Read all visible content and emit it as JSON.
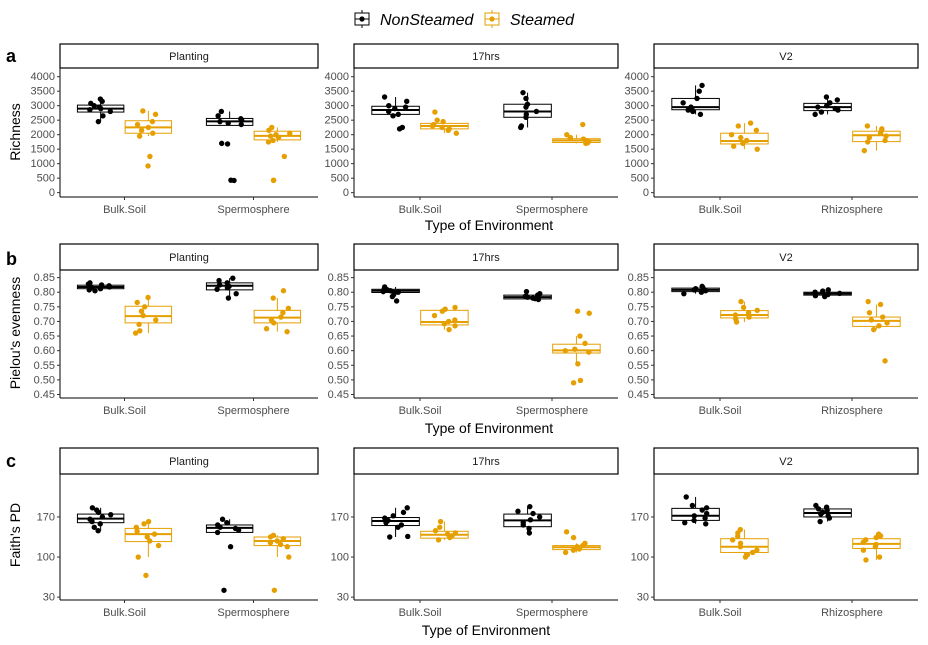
{
  "colors": {
    "NonSteamed": "#000000",
    "Steamed": "#E69F00"
  },
  "legend": {
    "items": [
      "NonSteamed",
      "Steamed"
    ],
    "placement": "top-center"
  },
  "chart_data": [
    {
      "type": "boxplot",
      "tag": "a",
      "ylabel": "Richness",
      "xlabel": "Type of Environment",
      "ylim": [
        -150,
        4300
      ],
      "yticks": [
        0,
        500,
        1000,
        1500,
        2000,
        2500,
        3000,
        3500,
        4000
      ],
      "panels": [
        {
          "title": "Planting",
          "categories": [
            "Bulk.Soil",
            "Spermosphere"
          ],
          "boxes": [
            {
              "cat": "Bulk.Soil",
              "series": "NonSteamed",
              "q1": 2780,
              "median": 2900,
              "q3": 3020,
              "points": [
                3230,
                3150,
                3080,
                3000,
                2950,
                2900,
                2860,
                2800,
                2650,
                2450
              ]
            },
            {
              "cat": "Bulk.Soil",
              "series": "Steamed",
              "q1": 2050,
              "median": 2250,
              "q3": 2480,
              "points": [
                2820,
                2700,
                2450,
                2350,
                2250,
                2150,
                2050,
                1950,
                1250,
                920
              ]
            },
            {
              "cat": "Spermosphere",
              "series": "NonSteamed",
              "q1": 2320,
              "median": 2460,
              "q3": 2560,
              "points": [
                2800,
                2650,
                2550,
                2500,
                2450,
                2400,
                2350,
                1700,
                1680,
                430,
                420
              ]
            },
            {
              "cat": "Spermosphere",
              "series": "Steamed",
              "q1": 1820,
              "median": 1960,
              "q3": 2120,
              "points": [
                2250,
                2150,
                2050,
                2000,
                1950,
                1900,
                1800,
                1750,
                1250,
                430,
                420
              ]
            }
          ]
        },
        {
          "title": "17hrs",
          "categories": [
            "Bulk.Soil",
            "Spermosphere"
          ],
          "boxes": [
            {
              "cat": "Bulk.Soil",
              "series": "NonSteamed",
              "q1": 2700,
              "median": 2850,
              "q3": 2980,
              "points": [
                3300,
                3150,
                3000,
                2950,
                2900,
                2800,
                2700,
                2650,
                2250,
                2200
              ]
            },
            {
              "cat": "Bulk.Soil",
              "series": "Steamed",
              "q1": 2200,
              "median": 2300,
              "q3": 2390,
              "points": [
                2780,
                2500,
                2450,
                2350,
                2300,
                2250,
                2200,
                2150,
                2050
              ]
            },
            {
              "cat": "Spermosphere",
              "series": "NonSteamed",
              "q1": 2600,
              "median": 2800,
              "q3": 3050,
              "points": [
                3450,
                3250,
                3050,
                2950,
                2800,
                2700,
                2600,
                2300,
                2250
              ]
            },
            {
              "cat": "Spermosphere",
              "series": "Steamed",
              "q1": 1730,
              "median": 1800,
              "q3": 1860,
              "points": [
                2350,
                2000,
                1900,
                1850,
                1800,
                1760,
                1720,
                1700
              ]
            }
          ]
        },
        {
          "title": "V2",
          "categories": [
            "Bulk.Soil",
            "Rhizosphere"
          ],
          "boxes": [
            {
              "cat": "Bulk.Soil",
              "series": "NonSteamed",
              "q1": 2860,
              "median": 2950,
              "q3": 3250,
              "points": [
                3700,
                3500,
                3250,
                3100,
                2950,
                2900,
                2850,
                2800,
                2700
              ]
            },
            {
              "cat": "Bulk.Soil",
              "series": "Steamed",
              "q1": 1680,
              "median": 1780,
              "q3": 2050,
              "points": [
                2400,
                2300,
                2150,
                2000,
                1900,
                1800,
                1700,
                1600,
                1500
              ]
            },
            {
              "cat": "Rhizosphere",
              "series": "NonSteamed",
              "q1": 2830,
              "median": 2950,
              "q3": 3080,
              "points": [
                3300,
                3200,
                3100,
                3000,
                2950,
                2900,
                2850,
                2780,
                2700
              ]
            },
            {
              "cat": "Rhizosphere",
              "series": "Steamed",
              "q1": 1760,
              "median": 1980,
              "q3": 2120,
              "points": [
                2300,
                2200,
                2150,
                2050,
                1950,
                1900,
                1800,
                1750,
                1450
              ]
            }
          ]
        }
      ]
    },
    {
      "type": "boxplot",
      "tag": "b",
      "ylabel": "Pielou's evenness",
      "xlabel": "Type of Environment",
      "ylim": [
        0.438,
        0.876
      ],
      "yticks": [
        0.45,
        0.5,
        0.55,
        0.6,
        0.65,
        0.7,
        0.75,
        0.8,
        0.85
      ],
      "tick_format": 2,
      "panels": [
        {
          "title": "Planting",
          "categories": [
            "Bulk.Soil",
            "Spermosphere"
          ],
          "boxes": [
            {
              "cat": "Bulk.Soil",
              "series": "NonSteamed",
              "q1": 0.812,
              "median": 0.818,
              "q3": 0.824,
              "points": [
                0.832,
                0.828,
                0.825,
                0.822,
                0.818,
                0.815,
                0.812,
                0.808,
                0.805
              ]
            },
            {
              "cat": "Bulk.Soil",
              "series": "Steamed",
              "q1": 0.695,
              "median": 0.718,
              "q3": 0.752,
              "points": [
                0.782,
                0.765,
                0.75,
                0.735,
                0.72,
                0.705,
                0.69,
                0.668,
                0.66
              ]
            },
            {
              "cat": "Spermosphere",
              "series": "NonSteamed",
              "q1": 0.808,
              "median": 0.822,
              "q3": 0.832,
              "points": [
                0.848,
                0.84,
                0.832,
                0.825,
                0.82,
                0.815,
                0.81,
                0.795,
                0.78
              ]
            },
            {
              "cat": "Spermosphere",
              "series": "Steamed",
              "q1": 0.695,
              "median": 0.713,
              "q3": 0.738,
              "points": [
                0.805,
                0.78,
                0.745,
                0.73,
                0.715,
                0.705,
                0.695,
                0.675,
                0.665
              ]
            }
          ]
        },
        {
          "title": "17hrs",
          "categories": [
            "Bulk.Soil",
            "Spermosphere"
          ],
          "boxes": [
            {
              "cat": "Bulk.Soil",
              "series": "NonSteamed",
              "q1": 0.799,
              "median": 0.805,
              "q3": 0.81,
              "points": [
                0.818,
                0.812,
                0.808,
                0.805,
                0.802,
                0.8,
                0.795,
                0.785,
                0.77
              ]
            },
            {
              "cat": "Bulk.Soil",
              "series": "Steamed",
              "q1": 0.688,
              "median": 0.698,
              "q3": 0.738,
              "points": [
                0.748,
                0.742,
                0.735,
                0.72,
                0.705,
                0.7,
                0.692,
                0.685,
                0.672
              ]
            },
            {
              "cat": "Spermosphere",
              "series": "NonSteamed",
              "q1": 0.777,
              "median": 0.783,
              "q3": 0.79,
              "points": [
                0.802,
                0.795,
                0.79,
                0.786,
                0.783,
                0.78,
                0.778,
                0.775
              ]
            },
            {
              "cat": "Spermosphere",
              "series": "Steamed",
              "q1": 0.592,
              "median": 0.601,
              "q3": 0.622,
              "points": [
                0.735,
                0.728,
                0.65,
                0.625,
                0.605,
                0.6,
                0.595,
                0.555,
                0.498,
                0.49
              ]
            }
          ]
        },
        {
          "title": "V2",
          "categories": [
            "Bulk.Soil",
            "Rhizosphere"
          ],
          "boxes": [
            {
              "cat": "Bulk.Soil",
              "series": "NonSteamed",
              "q1": 0.802,
              "median": 0.808,
              "q3": 0.814,
              "points": [
                0.82,
                0.815,
                0.812,
                0.808,
                0.805,
                0.8,
                0.795
              ]
            },
            {
              "cat": "Bulk.Soil",
              "series": "Steamed",
              "q1": 0.712,
              "median": 0.722,
              "q3": 0.737,
              "points": [
                0.768,
                0.748,
                0.738,
                0.73,
                0.722,
                0.715,
                0.708,
                0.698
              ]
            },
            {
              "cat": "Rhizosphere",
              "series": "NonSteamed",
              "q1": 0.79,
              "median": 0.795,
              "q3": 0.8,
              "points": [
                0.808,
                0.804,
                0.8,
                0.796,
                0.792,
                0.788,
                0.785
              ]
            },
            {
              "cat": "Rhizosphere",
              "series": "Steamed",
              "q1": 0.683,
              "median": 0.702,
              "q3": 0.715,
              "points": [
                0.768,
                0.758,
                0.73,
                0.715,
                0.705,
                0.695,
                0.685,
                0.672,
                0.565
              ]
            }
          ]
        }
      ]
    },
    {
      "type": "boxplot",
      "tag": "c",
      "ylabel": "Faith's PD",
      "xlabel": "Type of Environment",
      "ylim": [
        25,
        245
      ],
      "yticks": [
        30,
        100,
        170
      ],
      "panels": [
        {
          "title": "Planting",
          "categories": [
            "Bulk.Soil",
            "Spermosphere"
          ],
          "boxes": [
            {
              "cat": "Bulk.Soil",
              "series": "NonSteamed",
              "q1": 160,
              "median": 167,
              "q3": 175,
              "points": [
                186,
                182,
                178,
                174,
                170,
                166,
                162,
                158,
                152,
                146
              ]
            },
            {
              "cat": "Bulk.Soil",
              "series": "Steamed",
              "q1": 127,
              "median": 140,
              "q3": 150,
              "points": [
                162,
                158,
                152,
                145,
                140,
                135,
                128,
                120,
                100,
                68
              ]
            },
            {
              "cat": "Spermosphere",
              "series": "NonSteamed",
              "q1": 143,
              "median": 151,
              "q3": 156,
              "points": [
                166,
                160,
                156,
                152,
                150,
                147,
                143,
                118,
                42
              ]
            },
            {
              "cat": "Spermosphere",
              "series": "Steamed",
              "q1": 120,
              "median": 128,
              "q3": 135,
              "points": [
                138,
                135,
                132,
                128,
                125,
                122,
                118,
                100,
                42
              ]
            }
          ]
        },
        {
          "title": "17hrs",
          "categories": [
            "Bulk.Soil",
            "Spermosphere"
          ],
          "boxes": [
            {
              "cat": "Bulk.Soil",
              "series": "NonSteamed",
              "q1": 155,
              "median": 163,
              "q3": 169,
              "points": [
                186,
                178,
                172,
                168,
                164,
                160,
                156,
                152,
                136,
                135
              ]
            },
            {
              "cat": "Bulk.Soil",
              "series": "Steamed",
              "q1": 133,
              "median": 139,
              "q3": 145,
              "points": [
                162,
                152,
                146,
                142,
                140,
                137,
                134,
                130
              ]
            },
            {
              "cat": "Spermosphere",
              "series": "NonSteamed",
              "q1": 153,
              "median": 164,
              "q3": 175,
              "points": [
                188,
                180,
                176,
                170,
                165,
                160,
                156,
                150,
                142
              ]
            },
            {
              "cat": "Spermosphere",
              "series": "Steamed",
              "q1": 113,
              "median": 117,
              "q3": 120,
              "points": [
                144,
                134,
                124,
                120,
                118,
                116,
                114,
                112,
                108
              ]
            }
          ]
        },
        {
          "title": "V2",
          "categories": [
            "Bulk.Soil",
            "Rhizosphere"
          ],
          "boxes": [
            {
              "cat": "Bulk.Soil",
              "series": "NonSteamed",
              "q1": 164,
              "median": 172,
              "q3": 185,
              "points": [
                205,
                190,
                186,
                182,
                176,
                172,
                168,
                164,
                160,
                158
              ]
            },
            {
              "cat": "Bulk.Soil",
              "series": "Steamed",
              "q1": 108,
              "median": 118,
              "q3": 132,
              "points": [
                148,
                142,
                136,
                130,
                124,
                118,
                112,
                108,
                104,
                100
              ]
            },
            {
              "cat": "Rhizosphere",
              "series": "NonSteamed",
              "q1": 170,
              "median": 177,
              "q3": 184,
              "points": [
                190,
                187,
                184,
                181,
                178,
                175,
                172,
                168,
                162
              ]
            },
            {
              "cat": "Rhizosphere",
              "series": "Steamed",
              "q1": 115,
              "median": 123,
              "q3": 132,
              "points": [
                140,
                137,
                134,
                130,
                126,
                122,
                118,
                112,
                100,
                95
              ]
            }
          ]
        }
      ]
    }
  ]
}
